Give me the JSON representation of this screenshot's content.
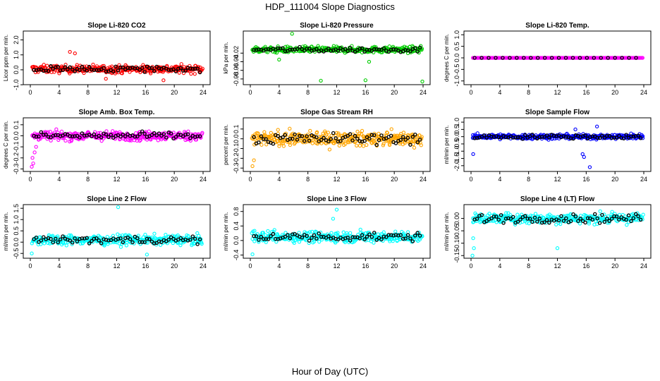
{
  "figure": {
    "title": "HDP_111004  Slope Diagnostics",
    "xlabel": "Hour of Day (UTC)"
  },
  "chart_data": [
    {
      "type": "scatter",
      "title": "Slope Li-820 CO2",
      "ylabel": "Licor ppm per min.",
      "xlim": [
        0,
        24
      ],
      "ylim": [
        -0.9,
        2.5
      ],
      "xticks": [
        0,
        4,
        8,
        12,
        16,
        20,
        24
      ],
      "yticks": [
        -1.0,
        0.0,
        1.0,
        2.0
      ],
      "ytick_labels": [
        "-1.0",
        "0.0",
        "1.0",
        "2.0"
      ],
      "color": "#ff0000",
      "center": 0.05,
      "spread": 0.22,
      "outliers": [
        [
          5.5,
          1.2
        ],
        [
          6.2,
          1.1
        ],
        [
          10.5,
          -0.6
        ],
        [
          18.5,
          -0.7
        ]
      ]
    },
    {
      "type": "scatter",
      "title": "Slope Li-820 Pressure",
      "ylabel": "kPa per min.",
      "xlim": [
        0,
        24
      ],
      "ylim": [
        -0.09,
        0.028
      ],
      "xticks": [
        0,
        4,
        8,
        12,
        16,
        20,
        24
      ],
      "yticks": [
        -0.08,
        -0.06,
        -0.04,
        -0.02
      ],
      "ytick_labels": [
        "-0.08",
        "-0.06",
        "-0.04",
        "-0.02"
      ],
      "color": "#00cc00",
      "center": -0.012,
      "spread": 0.006,
      "outliers": [
        [
          5.8,
          0.025
        ],
        [
          9.8,
          -0.084
        ],
        [
          16.0,
          -0.083
        ],
        [
          23.9,
          -0.086
        ],
        [
          4.0,
          -0.035
        ],
        [
          16.5,
          -0.04
        ]
      ]
    },
    {
      "type": "scatter",
      "title": "Slope Li-820 Temp.",
      "ylabel": "degrees C per min.",
      "xlim": [
        0,
        24
      ],
      "ylim": [
        -1.1,
        1.1
      ],
      "xticks": [
        0,
        4,
        8,
        12,
        16,
        20,
        24
      ],
      "yticks": [
        -1.0,
        -0.5,
        0.0,
        0.5,
        1.0
      ],
      "ytick_labels": [
        "-1.0",
        "-0.5",
        "0.0",
        "0.5",
        "1.0"
      ],
      "color": "#ff00ff",
      "center": 0.0,
      "spread": 0.0,
      "outliers": []
    },
    {
      "type": "scatter",
      "title": "Slope Amb. Box Temp.",
      "ylabel": "degrees C per min.",
      "xlim": [
        0,
        24
      ],
      "ylim": [
        -0.31,
        0.15
      ],
      "xticks": [
        0,
        4,
        8,
        12,
        16,
        20,
        24
      ],
      "yticks": [
        -0.3,
        -0.2,
        -0.1,
        0.0,
        0.1
      ],
      "ytick_labels": [
        "-0.3",
        "-0.2",
        "-0.1",
        "0.0",
        "0.1"
      ],
      "color": "#ff00ff",
      "center": 0.0,
      "spread": 0.035,
      "outliers": [
        [
          0.2,
          -0.28
        ],
        [
          0.4,
          -0.25
        ],
        [
          0.3,
          -0.2
        ],
        [
          0.6,
          -0.15
        ],
        [
          0.8,
          -0.1
        ]
      ]
    },
    {
      "type": "scatter",
      "title": "Slope Gas Stream RH",
      "ylabel": "percent per min.",
      "xlim": [
        0,
        24
      ],
      "ylim": [
        -0.32,
        0.2
      ],
      "xticks": [
        0,
        4,
        8,
        12,
        16,
        20,
        24
      ],
      "yticks": [
        -0.3,
        -0.2,
        -0.1,
        0.0,
        0.1
      ],
      "ytick_labels": [
        "-0.3",
        "-0.2",
        "-0.1",
        "0.0",
        "0.1"
      ],
      "color": "#ffa500",
      "center": 0.0,
      "spread": 0.06,
      "outliers": [
        [
          0.3,
          -0.28
        ],
        [
          0.5,
          -0.22
        ]
      ]
    },
    {
      "type": "scatter",
      "title": "Slope Sample Flow",
      "ylabel": "ml/min per min.",
      "xlim": [
        0,
        24
      ],
      "ylim": [
        -2.3,
        1.2
      ],
      "xticks": [
        0,
        4,
        8,
        12,
        16,
        20,
        24
      ],
      "yticks": [
        -2.0,
        -1.5,
        -1.0,
        -0.5,
        0.0,
        0.5,
        1.0
      ],
      "ytick_labels": [
        "-2.0",
        "-1.5",
        "-1.0",
        "-0.5",
        "0.0",
        "0.5",
        "1.0"
      ],
      "color": "#0000ff",
      "center": 0.0,
      "spread": 0.15,
      "outliers": [
        [
          0.3,
          -1.2
        ],
        [
          15.5,
          -1.2
        ],
        [
          15.7,
          -1.4
        ],
        [
          16.5,
          -2.1
        ],
        [
          17.5,
          0.7
        ],
        [
          14.5,
          0.5
        ]
      ]
    },
    {
      "type": "scatter",
      "title": "Slope Line 2 Flow",
      "ylabel": "ml/min per min.",
      "xlim": [
        0,
        24
      ],
      "ylim": [
        -0.65,
        1.6
      ],
      "xticks": [
        0,
        4,
        8,
        12,
        16,
        20,
        24
      ],
      "yticks": [
        -0.5,
        0.0,
        0.5,
        1.0,
        1.5
      ],
      "ytick_labels": [
        "-0.5",
        "0.0",
        "0.5",
        "1.0",
        "1.5"
      ],
      "color": "#00ffff",
      "center": 0.1,
      "spread": 0.18,
      "outliers": [
        [
          12.2,
          1.55
        ],
        [
          16.2,
          -0.55
        ],
        [
          0.2,
          -0.5
        ]
      ]
    },
    {
      "type": "scatter",
      "title": "Slope Line 3 Flow",
      "ylabel": "ml/min per min.",
      "xlim": [
        0,
        24
      ],
      "ylim": [
        -0.45,
        0.95
      ],
      "xticks": [
        0,
        4,
        8,
        12,
        16,
        20,
        24
      ],
      "yticks": [
        -0.4,
        0.0,
        0.4,
        0.8
      ],
      "ytick_labels": [
        "-0.4",
        "0.0",
        "0.4",
        "0.8"
      ],
      "color": "#00ffff",
      "center": 0.1,
      "spread": 0.13,
      "outliers": [
        [
          12.0,
          0.85
        ],
        [
          0.3,
          -0.38
        ],
        [
          11.5,
          0.6
        ]
      ]
    },
    {
      "type": "scatter",
      "title": "Slope Line 4 (LT) Flow",
      "ylabel": "ml/min per min.",
      "xlim": [
        0,
        24
      ],
      "ylim": [
        -0.155,
        0.05
      ],
      "xticks": [
        0,
        4,
        8,
        12,
        16,
        20,
        24
      ],
      "yticks": [
        -0.15,
        -0.1,
        -0.05,
        0.0
      ],
      "ytick_labels": [
        "-0.15",
        "-0.10",
        "-0.05",
        "0.00"
      ],
      "color": "#00ffff",
      "center": 0.0,
      "spread": 0.018,
      "outliers": [
        [
          0.2,
          -0.15
        ],
        [
          0.4,
          -0.12
        ],
        [
          12.0,
          -0.12
        ],
        [
          0.3,
          -0.08
        ]
      ]
    }
  ]
}
